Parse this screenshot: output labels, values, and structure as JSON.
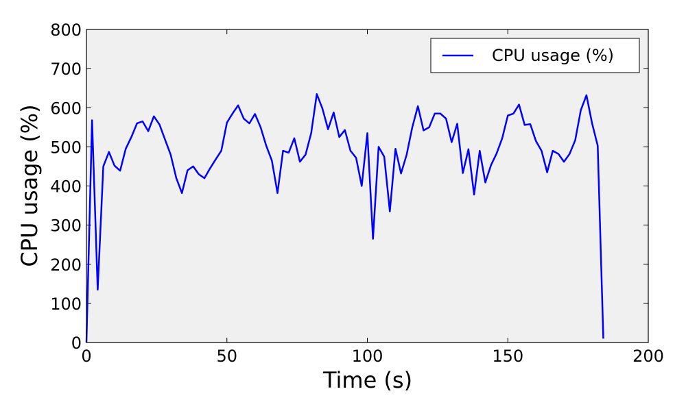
{
  "chart_data": {
    "type": "line",
    "title": "",
    "xlabel": "Time (s)",
    "ylabel": "CPU usage (%)",
    "xlim": [
      0,
      200
    ],
    "ylim": [
      0,
      800
    ],
    "xticks": [
      0,
      50,
      100,
      150,
      200
    ],
    "yticks": [
      0,
      100,
      200,
      300,
      400,
      500,
      600,
      700,
      800
    ],
    "grid": false,
    "legend_position": "top-right",
    "series": [
      {
        "name": "CPU usage (%)",
        "color": "#0000ff",
        "x": [
          0,
          2,
          4,
          6,
          8,
          10,
          12,
          14,
          16,
          18,
          20,
          22,
          24,
          26,
          28,
          30,
          32,
          34,
          36,
          38,
          40,
          42,
          44,
          46,
          48,
          50,
          52,
          54,
          56,
          58,
          60,
          62,
          64,
          66,
          68,
          70,
          72,
          74,
          76,
          78,
          80,
          82,
          84,
          86,
          88,
          90,
          92,
          94,
          96,
          98,
          100,
          102,
          104,
          106,
          108,
          110,
          112,
          114,
          116,
          118,
          120,
          122,
          124,
          126,
          128,
          130,
          132,
          134,
          136,
          138,
          140,
          142,
          144,
          146,
          148,
          150,
          152,
          154,
          156,
          158,
          160,
          162,
          164,
          166,
          168,
          170,
          172,
          174,
          176,
          178,
          180,
          182,
          184
        ],
        "y": [
          0,
          568,
          135,
          450,
          487,
          452,
          439,
          495,
          525,
          560,
          565,
          540,
          578,
          557,
          518,
          480,
          420,
          382,
          440,
          450,
          430,
          420,
          445,
          468,
          490,
          562,
          585,
          606,
          572,
          560,
          584,
          550,
          503,
          465,
          382,
          490,
          485,
          522,
          462,
          480,
          535,
          635,
          598,
          545,
          588,
          525,
          543,
          490,
          472,
          400,
          535,
          265,
          500,
          475,
          335,
          495,
          432,
          480,
          550,
          604,
          542,
          550,
          585,
          585,
          572,
          512,
          559,
          433,
          494,
          378,
          490,
          409,
          453,
          483,
          522,
          580,
          585,
          608,
          556,
          558,
          515,
          490,
          435,
          490,
          482,
          462,
          482,
          517,
          594,
          632,
          560,
          503,
          10
        ]
      }
    ]
  }
}
